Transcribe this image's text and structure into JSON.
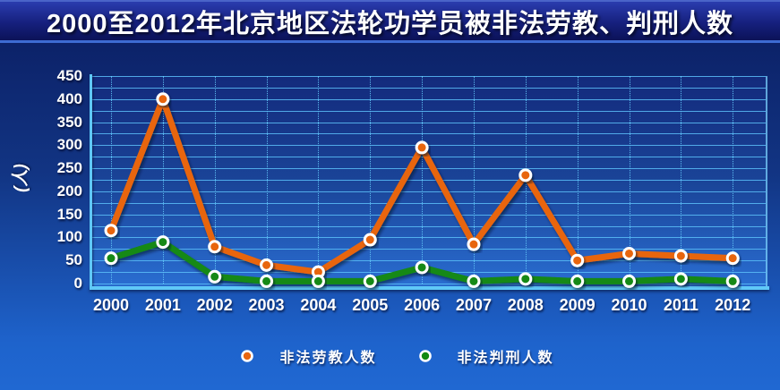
{
  "title": "2000至2012年北京地区法轮功学员被非法劳教、判刑人数",
  "y_axis_title": "(人)",
  "legend": [
    {
      "label": "非法劳教人数",
      "color": "#e8650e"
    },
    {
      "label": "非法判刑人数",
      "color": "#128912"
    }
  ],
  "colors": {
    "background_top": "#0a1c60",
    "background_bottom": "#2068d2",
    "gridline": "#5abef8",
    "axis_line": "#5fc8f8",
    "text": "#ffffff",
    "series_laojiao": "#e8650e",
    "series_panxing": "#128912",
    "marker_ring": "#ffffff"
  },
  "chart_data": {
    "type": "line",
    "title": "2000至2012年北京地区法轮功学员被非法劳教、判刑人数",
    "categories": [
      "2000",
      "2001",
      "2002",
      "2003",
      "2004",
      "2005",
      "2006",
      "2007",
      "2008",
      "2009",
      "2010",
      "2011",
      "2012"
    ],
    "series": [
      {
        "name": "非法劳教人数",
        "color": "#e8650e",
        "values": [
          115,
          400,
          80,
          40,
          25,
          95,
          295,
          85,
          235,
          50,
          65,
          60,
          55
        ]
      },
      {
        "name": "非法判刑人数",
        "color": "#128912",
        "values": [
          55,
          90,
          15,
          5,
          5,
          5,
          35,
          5,
          10,
          5,
          5,
          10,
          5
        ]
      }
    ],
    "xlabel": "",
    "ylabel": "(人)",
    "ylim": [
      0,
      450
    ],
    "y_tick_step": 50,
    "gridline_step": 25,
    "grid": true,
    "legend_position": "bottom"
  }
}
